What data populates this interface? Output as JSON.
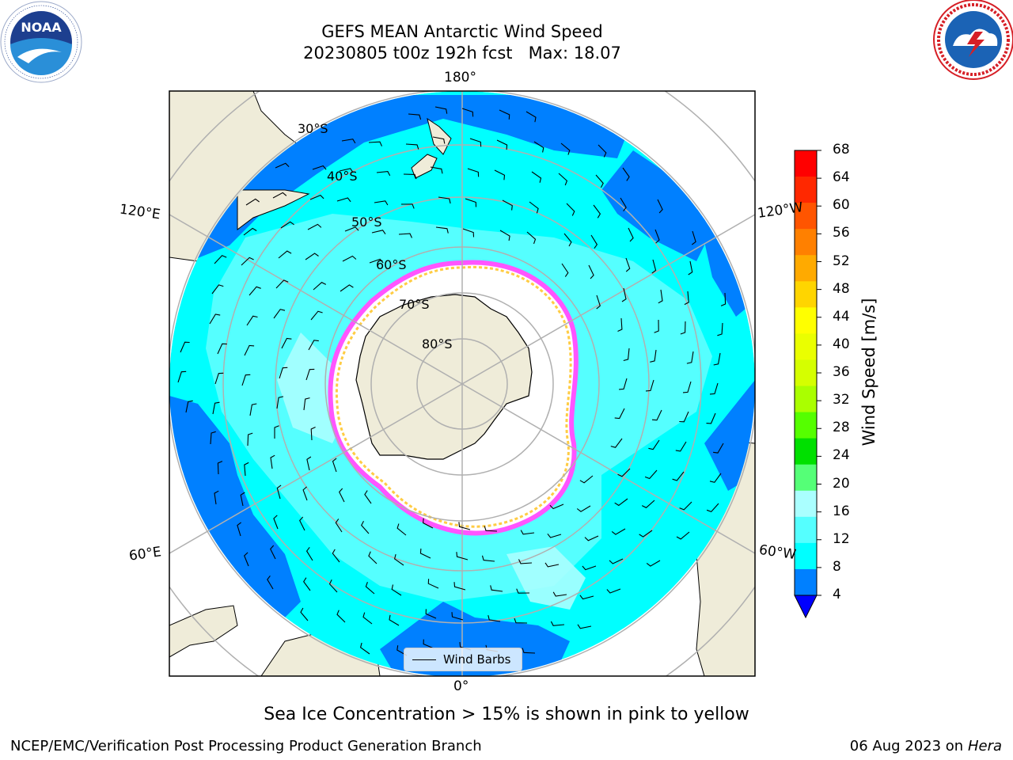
{
  "header": {
    "title_line1": "GEFS MEAN Antarctic Wind Speed",
    "title_line2": "20230805 t00z 192h fcst   Max: 18.07"
  },
  "logos": {
    "left": "NOAA",
    "left_ring_text": "NATIONAL OCEANIC AND ATMOSPHERIC ADMINISTRATION · U.S. DEPARTMENT OF COMMERCE",
    "right_ring_text": "NATIONAL WEATHER SERVICE"
  },
  "map": {
    "longitude_labels": {
      "top": "180°",
      "bottom": "0°",
      "upper_left": "120°E",
      "upper_right": "120°W",
      "lower_left": "60°E",
      "lower_right": "60°W"
    },
    "latitude_labels": [
      "30°S",
      "40°S",
      "50°S",
      "60°S",
      "70°S",
      "80°S"
    ],
    "legend_label": "Wind Barbs",
    "colors": {
      "land": "#efecd9",
      "ocean_deep": "#0080ff",
      "ocean_mid": "#00ffff",
      "ocean_light": "#55ffff",
      "ocean_pale": "#aaffff",
      "ice_edge": "#ff55ff",
      "ice_inner": "#ffcc44"
    }
  },
  "colorbar": {
    "label": "Wind Speed [m/s]",
    "ticks": [
      "68",
      "64",
      "60",
      "56",
      "52",
      "48",
      "44",
      "40",
      "36",
      "32",
      "28",
      "24",
      "20",
      "16",
      "12",
      "8",
      "4"
    ],
    "colors_top_to_bottom": [
      "#ff0000",
      "#ff2800",
      "#ff5500",
      "#ff8000",
      "#ffaa00",
      "#ffd500",
      "#ffff00",
      "#eaff00",
      "#d5ff00",
      "#aaff00",
      "#55ff00",
      "#00e000",
      "#55ff77",
      "#aaffff",
      "#55ffff",
      "#00ffff",
      "#0080ff"
    ],
    "extend_below_color": "#0000ff"
  },
  "caption": "Sea Ice Concentration > 15% is shown in pink to yellow",
  "footer": {
    "left": "NCEP/EMC/Verification Post Processing Product Generation Branch",
    "right_date": "06 Aug 2023 on",
    "right_host": "Hera"
  }
}
